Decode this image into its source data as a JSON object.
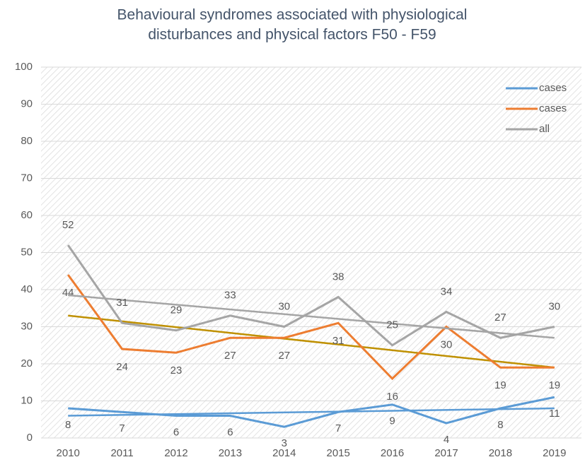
{
  "chart_data": {
    "type": "line",
    "title": [
      "Behavioural syndromes associated with physiological",
      "disturbances and physical factors F50 - F59"
    ],
    "categories": [
      "2010",
      "2011",
      "2012",
      "2013",
      "2014",
      "2015",
      "2016",
      "2017",
      "2018",
      "2019"
    ],
    "series": [
      {
        "name": "cases",
        "color": "#5b9bd5",
        "values": [
          8,
          7,
          6,
          6,
          3,
          7,
          9,
          4,
          8,
          11
        ],
        "trend": [
          6,
          8
        ],
        "trend_color": "#5b9bd5"
      },
      {
        "name": "cases",
        "color": "#ed7d31",
        "values": [
          44,
          24,
          23,
          27,
          27,
          31,
          16,
          30,
          19,
          19
        ],
        "trend": [
          33,
          19
        ],
        "trend_color": "#bf9000"
      },
      {
        "name": "all",
        "color": "#a5a5a5",
        "values": [
          52,
          31,
          29,
          33,
          30,
          38,
          25,
          34,
          27,
          30
        ],
        "trend": [
          38.5,
          27
        ],
        "trend_color": "#a5a5a5"
      }
    ],
    "ylim": [
      0,
      100
    ],
    "yticks": [
      0,
      10,
      20,
      30,
      40,
      50,
      60,
      70,
      80,
      90,
      100
    ],
    "grid": true,
    "legend": "top-right"
  }
}
